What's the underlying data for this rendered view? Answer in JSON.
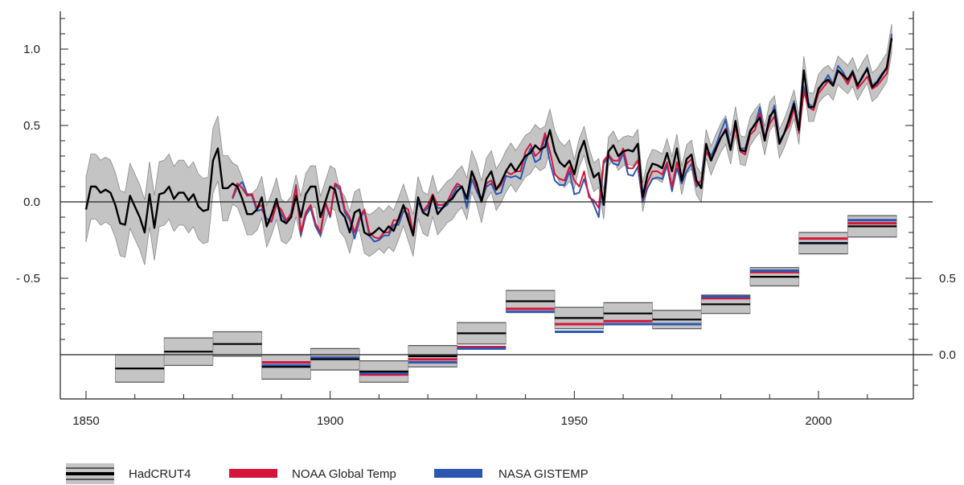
{
  "chart_data": {
    "type": "line",
    "colors": {
      "hadcrut4": "#000000",
      "hadcrut4_band": "#c4c4c4",
      "noaa": "#d7153a",
      "nasa": "#2b57b0"
    },
    "legend": [
      {
        "name": "HadCRUT4",
        "key": "hadcrut4"
      },
      {
        "name": "NOAA Global Temp",
        "key": "noaa"
      },
      {
        "name": "NASA GISTEMP",
        "key": "nasa"
      }
    ],
    "x_axis": {
      "ticks": [
        "1850",
        "1900",
        "1950",
        "2000"
      ],
      "range": [
        1845,
        2020
      ]
    },
    "annual_panel": {
      "y_range": [
        -0.42,
        1.2
      ],
      "y_ticks": [
        "1.0",
        "0.5",
        "0.0",
        "- 0.5"
      ],
      "x": [
        1850,
        1851,
        1852,
        1853,
        1854,
        1855,
        1856,
        1857,
        1858,
        1859,
        1860,
        1861,
        1862,
        1863,
        1864,
        1865,
        1866,
        1867,
        1868,
        1869,
        1870,
        1871,
        1872,
        1873,
        1874,
        1875,
        1876,
        1877,
        1878,
        1879,
        1880,
        1881,
        1882,
        1883,
        1884,
        1885,
        1886,
        1887,
        1888,
        1889,
        1890,
        1891,
        1892,
        1893,
        1894,
        1895,
        1896,
        1897,
        1898,
        1899,
        1900,
        1901,
        1902,
        1903,
        1904,
        1905,
        1906,
        1907,
        1908,
        1909,
        1910,
        1911,
        1912,
        1913,
        1914,
        1915,
        1916,
        1917,
        1918,
        1919,
        1920,
        1921,
        1922,
        1923,
        1924,
        1925,
        1926,
        1927,
        1928,
        1929,
        1930,
        1931,
        1932,
        1933,
        1934,
        1935,
        1936,
        1937,
        1938,
        1939,
        1940,
        1941,
        1942,
        1943,
        1944,
        1945,
        1946,
        1947,
        1948,
        1949,
        1950,
        1951,
        1952,
        1953,
        1954,
        1955,
        1956,
        1957,
        1958,
        1959,
        1960,
        1961,
        1962,
        1963,
        1964,
        1965,
        1966,
        1967,
        1968,
        1969,
        1970,
        1971,
        1972,
        1973,
        1974,
        1975,
        1976,
        1977,
        1978,
        1979,
        1980,
        1981,
        1982,
        1983,
        1984,
        1985,
        1986,
        1987,
        1988,
        1989,
        1990,
        1991,
        1992,
        1993,
        1994,
        1995,
        1996,
        1997,
        1998,
        1999,
        2000,
        2001,
        2002,
        2003,
        2004,
        2005,
        2006,
        2007,
        2008,
        2009,
        2010,
        2011,
        2012,
        2013,
        2014,
        2015
      ],
      "series": [
        {
          "name": "HadCRUT4",
          "key": "hadcrut4",
          "uncertainty": 0.17,
          "values": [
            -0.05,
            0.1,
            0.1,
            0.06,
            0.08,
            0.06,
            -0.02,
            -0.14,
            -0.15,
            0.04,
            -0.03,
            -0.1,
            -0.2,
            0.05,
            -0.17,
            0.05,
            0.06,
            0.1,
            0.02,
            0.06,
            0.06,
            0.01,
            0.05,
            -0.03,
            -0.06,
            -0.05,
            0.27,
            0.35,
            0.09,
            0.09,
            0.12,
            0.1,
            0.02,
            -0.08,
            -0.08,
            -0.05,
            0.03,
            -0.16,
            -0.08,
            0.02,
            -0.12,
            -0.14,
            -0.1,
            0.04,
            -0.1,
            0.05,
            0.1,
            0.1,
            -0.1,
            0.0,
            0.1,
            0.08,
            -0.06,
            -0.1,
            -0.2,
            -0.07,
            -0.05,
            -0.2,
            -0.22,
            -0.2,
            -0.17,
            -0.2,
            -0.16,
            -0.19,
            -0.11,
            -0.02,
            -0.12,
            -0.22,
            0.03,
            -0.07,
            -0.09,
            0.04,
            -0.08,
            -0.04,
            0.0,
            0.02,
            0.07,
            0.1,
            0.02,
            0.2,
            0.12,
            0.0,
            0.15,
            0.2,
            0.08,
            0.13,
            0.2,
            0.25,
            0.2,
            0.25,
            0.3,
            0.32,
            0.37,
            0.34,
            0.36,
            0.47,
            0.33,
            0.26,
            0.23,
            0.27,
            0.18,
            0.32,
            0.4,
            0.26,
            0.16,
            0.19,
            -0.02,
            0.33,
            0.37,
            0.3,
            0.33,
            0.34,
            0.33,
            0.38,
            0.03,
            0.18,
            0.25,
            0.24,
            0.22,
            0.32,
            0.2,
            0.35,
            0.14,
            0.28,
            0.31,
            0.14,
            0.09,
            0.38,
            0.27,
            0.35,
            0.42,
            0.47,
            0.34,
            0.53,
            0.34,
            0.33,
            0.46,
            0.51,
            0.55,
            0.4,
            0.56,
            0.6,
            0.38,
            0.45,
            0.54,
            0.64,
            0.47,
            0.86,
            0.62,
            0.62,
            0.74,
            0.78,
            0.8,
            0.76,
            0.86,
            0.83,
            0.8,
            0.85,
            0.76,
            0.82,
            0.87,
            0.75,
            0.78,
            0.83,
            0.88,
            1.07
          ]
        },
        {
          "name": "NOAA Global Temp",
          "key": "noaa",
          "values": [
            0.03,
            0.12,
            0.09,
            0.04,
            0.05,
            -0.04,
            -0.02,
            -0.15,
            -0.12,
            -0.02,
            -0.05,
            -0.12,
            -0.08,
            0.1,
            -0.2,
            -0.07,
            -0.02,
            -0.14,
            -0.2,
            0.0,
            -0.09,
            0.12,
            0.1,
            -0.05,
            -0.1,
            -0.2,
            -0.1,
            -0.05,
            -0.2,
            -0.23,
            -0.24,
            -0.2,
            -0.2,
            -0.12,
            -0.12,
            -0.03,
            -0.05,
            -0.2,
            0.02,
            -0.06,
            -0.02,
            0.05,
            -0.02,
            -0.02,
            0.0,
            0.07,
            0.12,
            0.1,
            0.02,
            0.2,
            0.09,
            0.02,
            0.12,
            0.14,
            0.08,
            0.11,
            0.2,
            0.18,
            0.2,
            0.2,
            0.33,
            0.38,
            0.3,
            0.33,
            0.45,
            0.33,
            0.18,
            0.15,
            0.14,
            0.23,
            0.14,
            0.1,
            0.2,
            0.03,
            0.01,
            -0.04,
            0.27,
            0.31,
            0.27,
            0.27,
            0.35,
            0.22,
            0.22,
            0.27,
            0.02,
            0.13,
            0.2,
            0.2,
            0.18,
            0.26,
            0.1,
            0.26,
            0.14,
            0.25,
            0.28,
            0.11,
            0.14,
            0.33,
            0.27,
            0.34,
            0.42,
            0.48,
            0.34,
            0.49,
            0.33,
            0.31,
            0.44,
            0.47,
            0.58,
            0.42,
            0.51,
            0.56,
            0.38,
            0.45,
            0.5,
            0.61,
            0.45,
            0.72,
            0.62,
            0.6,
            0.71,
            0.75,
            0.79,
            0.76,
            0.86,
            0.82,
            0.77,
            0.84,
            0.74,
            0.78,
            0.82,
            0.74,
            0.76,
            0.8,
            0.84,
            1.08
          ]
        },
        {
          "name": "NASA GISTEMP",
          "key": "nasa",
          "values": [
            0.02,
            0.1,
            0.13,
            0.05,
            0.04,
            -0.06,
            -0.05,
            -0.11,
            -0.13,
            -0.01,
            -0.08,
            -0.14,
            -0.07,
            0.11,
            -0.22,
            -0.09,
            -0.04,
            -0.16,
            -0.22,
            -0.01,
            -0.1,
            0.11,
            0.08,
            -0.07,
            -0.12,
            -0.24,
            -0.12,
            -0.06,
            -0.22,
            -0.26,
            -0.25,
            -0.22,
            -0.22,
            -0.15,
            -0.15,
            -0.06,
            -0.08,
            -0.21,
            0.0,
            -0.07,
            -0.04,
            0.03,
            -0.04,
            -0.04,
            -0.02,
            0.04,
            0.1,
            0.1,
            -0.04,
            0.15,
            0.07,
            0.0,
            0.1,
            0.12,
            0.05,
            0.06,
            0.17,
            0.16,
            0.17,
            0.15,
            0.27,
            0.35,
            0.26,
            0.28,
            0.43,
            0.26,
            0.14,
            0.11,
            0.11,
            0.2,
            0.05,
            0.06,
            0.15,
            0.05,
            -0.02,
            -0.1,
            0.25,
            0.3,
            0.25,
            0.24,
            0.32,
            0.18,
            0.17,
            0.23,
            0.0,
            0.09,
            0.15,
            0.16,
            0.15,
            0.24,
            0.07,
            0.22,
            0.12,
            0.2,
            0.25,
            0.1,
            0.14,
            0.36,
            0.3,
            0.37,
            0.46,
            0.54,
            0.34,
            0.51,
            0.35,
            0.35,
            0.47,
            0.5,
            0.62,
            0.42,
            0.53,
            0.63,
            0.4,
            0.45,
            0.55,
            0.66,
            0.48,
            0.75,
            0.64,
            0.62,
            0.73,
            0.78,
            0.83,
            0.77,
            0.89,
            0.85,
            0.79,
            0.86,
            0.77,
            0.81,
            0.88,
            0.76,
            0.79,
            0.84,
            0.87,
            1.1
          ]
        }
      ],
      "series_start_years": {
        "noaa": 1880,
        "nasa": 1880
      }
    },
    "decadal_panel": {
      "y_range": [
        -0.32,
        0.98
      ],
      "y_ticks": [
        "0.5",
        "0.0"
      ],
      "decades": [
        {
          "start": 1856,
          "end": 1866,
          "hadcrut4": -0.09,
          "noaa": null,
          "nasa": null,
          "half_width": 0.09
        },
        {
          "start": 1866,
          "end": 1876,
          "hadcrut4": 0.02,
          "noaa": null,
          "nasa": null,
          "half_width": 0.09
        },
        {
          "start": 1876,
          "end": 1886,
          "hadcrut4": 0.07,
          "noaa": null,
          "nasa": null,
          "half_width": 0.08
        },
        {
          "start": 1886,
          "end": 1896,
          "hadcrut4": -0.08,
          "noaa": -0.05,
          "nasa": -0.07,
          "half_width": 0.08
        },
        {
          "start": 1896,
          "end": 1906,
          "hadcrut4": -0.03,
          "noaa": -0.02,
          "nasa": -0.02,
          "half_width": 0.07
        },
        {
          "start": 1906,
          "end": 1916,
          "hadcrut4": -0.11,
          "noaa": -0.13,
          "nasa": -0.12,
          "half_width": 0.07
        },
        {
          "start": 1916,
          "end": 1926,
          "hadcrut4": -0.01,
          "noaa": -0.03,
          "nasa": -0.05,
          "half_width": 0.07
        },
        {
          "start": 1926,
          "end": 1936,
          "hadcrut4": 0.14,
          "noaa": 0.05,
          "nasa": 0.04,
          "half_width": 0.07
        },
        {
          "start": 1936,
          "end": 1946,
          "hadcrut4": 0.35,
          "noaa": 0.3,
          "nasa": 0.28,
          "half_width": 0.07
        },
        {
          "start": 1946,
          "end": 1956,
          "hadcrut4": 0.24,
          "noaa": 0.2,
          "nasa": 0.15,
          "half_width": 0.07
        },
        {
          "start": 1956,
          "end": 1966,
          "hadcrut4": 0.27,
          "noaa": 0.22,
          "nasa": 0.2,
          "half_width": 0.07
        },
        {
          "start": 1966,
          "end": 1976,
          "hadcrut4": 0.23,
          "noaa": 0.2,
          "nasa": 0.2,
          "half_width": 0.06
        },
        {
          "start": 1976,
          "end": 1986,
          "hadcrut4": 0.33,
          "noaa": 0.37,
          "nasa": 0.38,
          "half_width": 0.06
        },
        {
          "start": 1986,
          "end": 1996,
          "hadcrut4": 0.51,
          "noaa": 0.54,
          "nasa": 0.55,
          "half_width": 0.06
        },
        {
          "start": 1996,
          "end": 2006,
          "hadcrut4": 0.73,
          "noaa": 0.76,
          "nasa": 0.73,
          "half_width": 0.07
        },
        {
          "start": 2006,
          "end": 2016,
          "hadcrut4": 0.84,
          "noaa": 0.86,
          "nasa": 0.88,
          "half_width": 0.07
        }
      ]
    }
  }
}
